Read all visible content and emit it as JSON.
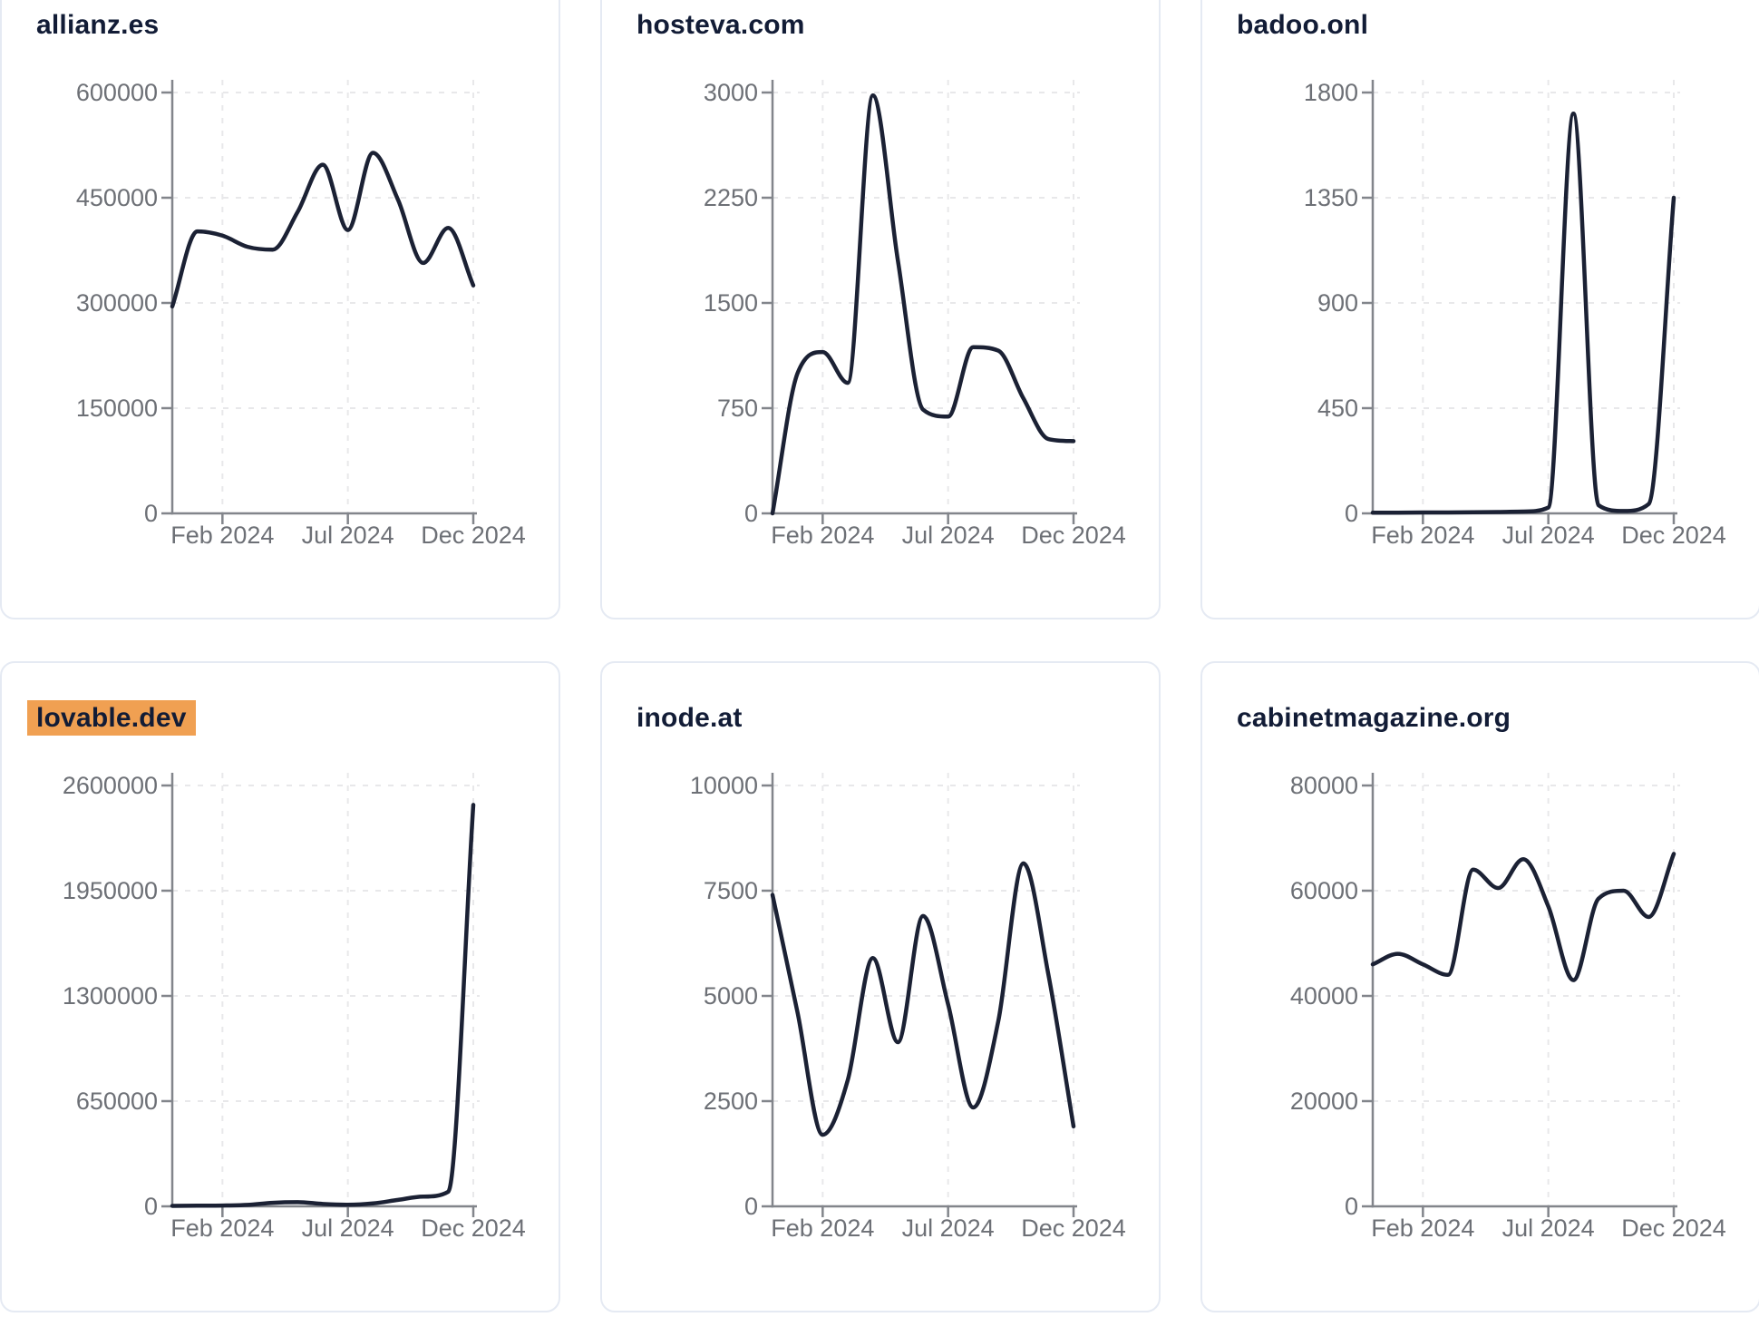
{
  "page": {
    "kind": "website-traffic-sparkline-dashboard",
    "x_tick_labels": [
      "Feb 2024",
      "Jul 2024",
      "Dec 2024"
    ],
    "months": [
      "Dec 2023",
      "Jan 2024",
      "Feb 2024",
      "Mar 2024",
      "Apr 2024",
      "May 2024",
      "Jun 2024",
      "Jul 2024",
      "Aug 2024",
      "Sep 2024",
      "Oct 2024",
      "Nov 2024",
      "Dec 2024"
    ]
  },
  "colors": {
    "line": "#1b2134",
    "title_text": "#121c36",
    "title_highlight": "#f0a052",
    "tick_label": "#6d7076",
    "axis": "#82858b",
    "gridline": "#e8e8ea",
    "card_border": "#e5eaf3",
    "card_bg": "#ffffff"
  },
  "chart_data": [
    {
      "type": "line",
      "title": "allianz.es",
      "highlighted": false,
      "xlabel": "",
      "ylabel": "",
      "x": [
        "Dec 2023",
        "Jan 2024",
        "Feb 2024",
        "Mar 2024",
        "Apr 2024",
        "May 2024",
        "Jun 2024",
        "Jul 2024",
        "Aug 2024",
        "Sep 2024",
        "Oct 2024",
        "Nov 2024",
        "Dec 2024"
      ],
      "values": [
        295000,
        402000,
        396000,
        380000,
        376000,
        430000,
        497000,
        404000,
        514000,
        447000,
        357000,
        407000,
        325000
      ],
      "y_ticks": [
        0,
        150000,
        300000,
        450000,
        600000
      ],
      "ylim": [
        0,
        600000
      ],
      "x_tick_labels": [
        "Feb 2024",
        "Jul 2024",
        "Dec 2024"
      ],
      "x_tick_month_index": [
        2,
        7,
        12
      ],
      "grid": true,
      "legend": "none"
    },
    {
      "type": "line",
      "title": "hosteva.com",
      "highlighted": false,
      "xlabel": "",
      "ylabel": "",
      "x": [
        "Dec 2023",
        "Jan 2024",
        "Feb 2024",
        "Mar 2024",
        "Apr 2024",
        "May 2024",
        "Jun 2024",
        "Jul 2024",
        "Aug 2024",
        "Sep 2024",
        "Oct 2024",
        "Nov 2024",
        "Dec 2024"
      ],
      "values": [
        0,
        1000,
        1150,
        930,
        2980,
        1800,
        740,
        690,
        1185,
        1160,
        820,
        530,
        515
      ],
      "y_ticks": [
        0,
        750,
        1500,
        2250,
        3000
      ],
      "ylim": [
        0,
        3000
      ],
      "x_tick_labels": [
        "Feb 2024",
        "Jul 2024",
        "Dec 2024"
      ],
      "x_tick_month_index": [
        2,
        7,
        12
      ],
      "grid": true,
      "legend": "none"
    },
    {
      "type": "line",
      "title": "badoo.onl",
      "highlighted": false,
      "xlabel": "",
      "ylabel": "",
      "x": [
        "Dec 2023",
        "Jan 2024",
        "Feb 2024",
        "Mar 2024",
        "Apr 2024",
        "May 2024",
        "Jun 2024",
        "Jul 2024",
        "Aug 2024",
        "Sep 2024",
        "Oct 2024",
        "Nov 2024",
        "Dec 2024"
      ],
      "values": [
        3,
        3,
        4,
        4,
        5,
        6,
        8,
        25,
        1710,
        35,
        10,
        40,
        1350
      ],
      "y_ticks": [
        0,
        450,
        900,
        1350,
        1800
      ],
      "ylim": [
        0,
        1800
      ],
      "x_tick_labels": [
        "Feb 2024",
        "Jul 2024",
        "Dec 2024"
      ],
      "x_tick_month_index": [
        2,
        7,
        12
      ],
      "grid": true,
      "legend": "none"
    },
    {
      "type": "line",
      "title": "lovable.dev",
      "highlighted": true,
      "xlabel": "",
      "ylabel": "",
      "x": [
        "Dec 2023",
        "Jan 2024",
        "Feb 2024",
        "Mar 2024",
        "Apr 2024",
        "May 2024",
        "Jun 2024",
        "Jul 2024",
        "Aug 2024",
        "Sep 2024",
        "Oct 2024",
        "Nov 2024",
        "Dec 2024"
      ],
      "values": [
        3000,
        4000,
        5000,
        9000,
        22000,
        26000,
        15000,
        10000,
        18000,
        40000,
        60000,
        90000,
        2480000
      ],
      "y_ticks": [
        0,
        650000,
        1300000,
        1950000,
        2600000
      ],
      "ylim": [
        0,
        2600000
      ],
      "x_tick_labels": [
        "Feb 2024",
        "Jul 2024",
        "Dec 2024"
      ],
      "x_tick_month_index": [
        2,
        7,
        12
      ],
      "grid": true,
      "legend": "none"
    },
    {
      "type": "line",
      "title": "inode.at",
      "highlighted": false,
      "xlabel": "",
      "ylabel": "",
      "x": [
        "Dec 2023",
        "Jan 2024",
        "Feb 2024",
        "Mar 2024",
        "Apr 2024",
        "May 2024",
        "Jun 2024",
        "Jul 2024",
        "Aug 2024",
        "Sep 2024",
        "Oct 2024",
        "Nov 2024",
        "Dec 2024"
      ],
      "values": [
        7400,
        4600,
        1700,
        3000,
        5900,
        3900,
        6900,
        4800,
        2350,
        4400,
        8150,
        5500,
        1900
      ],
      "y_ticks": [
        0,
        2500,
        5000,
        7500,
        10000
      ],
      "ylim": [
        0,
        10000
      ],
      "x_tick_labels": [
        "Feb 2024",
        "Jul 2024",
        "Dec 2024"
      ],
      "x_tick_month_index": [
        2,
        7,
        12
      ],
      "grid": true,
      "legend": "none"
    },
    {
      "type": "line",
      "title": "cabinetmagazine.org",
      "highlighted": false,
      "xlabel": "",
      "ylabel": "",
      "x": [
        "Dec 2023",
        "Jan 2024",
        "Feb 2024",
        "Mar 2024",
        "Apr 2024",
        "May 2024",
        "Jun 2024",
        "Jul 2024",
        "Aug 2024",
        "Sep 2024",
        "Oct 2024",
        "Nov 2024",
        "Dec 2024"
      ],
      "values": [
        46000,
        48000,
        46000,
        44000,
        64000,
        60500,
        66000,
        57000,
        43000,
        58500,
        60000,
        55000,
        67000
      ],
      "y_ticks": [
        0,
        20000,
        40000,
        60000,
        80000
      ],
      "ylim": [
        0,
        80000
      ],
      "x_tick_labels": [
        "Feb 2024",
        "Jul 2024",
        "Dec 2024"
      ],
      "x_tick_month_index": [
        2,
        7,
        12
      ],
      "grid": true,
      "legend": "none"
    }
  ]
}
